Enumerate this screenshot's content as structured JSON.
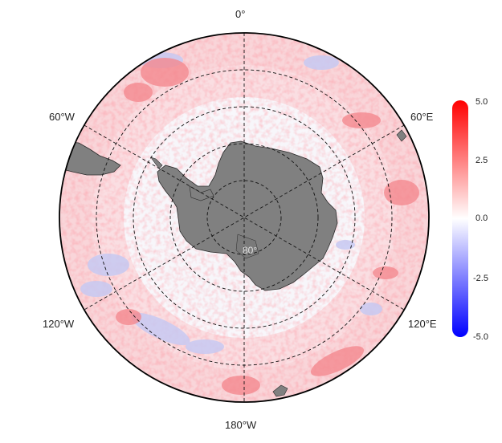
{
  "map": {
    "projection": "south-polar-stereographic",
    "longitude_labels": {
      "lon_0": "0°",
      "lon_60e": "60°E",
      "lon_120e": "120°E",
      "lon_180": "180°W",
      "lon_120w": "120°W",
      "lon_60w": "60°W"
    },
    "latitude_label": "80°",
    "land_color": "#808080",
    "ocean_background": "#f7f5fb"
  },
  "colorbar": {
    "ticks": [
      "5.0",
      "2.5",
      "0.0",
      "-2.5",
      "-5.0"
    ],
    "max": 5.0,
    "min": -5.0,
    "colors": {
      "high": "#ff0000",
      "mid": "#ffffff",
      "low": "#0000ff"
    }
  }
}
